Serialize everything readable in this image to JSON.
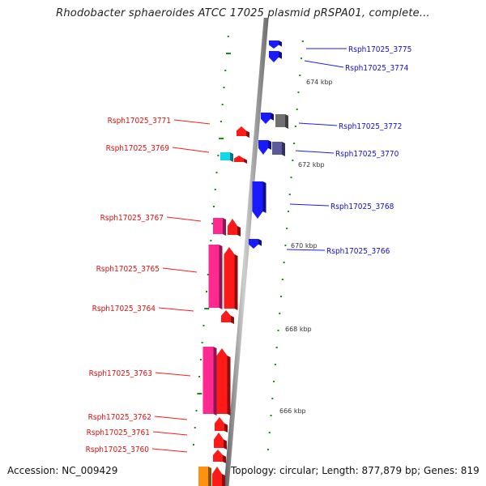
{
  "title": "Rhodobacter sphaeroides ATCC 17025 plasmid pRSPA01, complete...",
  "footer": {
    "accession": "Accession: NC_009429",
    "summary": "Topology: circular; Length: 877,879 bp; Genes: 819"
  },
  "scale_labels": [
    "674 kbp",
    "672 kbp",
    "670 kbp",
    "668 kbp",
    "666 kbp"
  ],
  "genes_forward_strand": [
    "Rsph17025_3775",
    "Rsph17025_3774",
    "Rsph17025_3772",
    "Rsph17025_3770",
    "Rsph17025_3768",
    "Rsph17025_3766"
  ],
  "genes_reverse_strand": [
    "Rsph17025_3771",
    "Rsph17025_3769",
    "Rsph17025_3767",
    "Rsph17025_3765",
    "Rsph17025_3764",
    "Rsph17025_3763",
    "Rsph17025_3762",
    "Rsph17025_3761",
    "Rsph17025_3760"
  ],
  "colors": {
    "forward_gene": "#1a1aff",
    "reverse_gene": "#ff1a1a",
    "grey_gene": "#707070",
    "slate_gene": "#5a5a9c",
    "cyan_gene": "#10d8e8",
    "pink_gene": "#ff2a90",
    "orange_gene": "#ff9010",
    "backbone": "#8a8a8a",
    "tick": "#1a8a1a"
  }
}
